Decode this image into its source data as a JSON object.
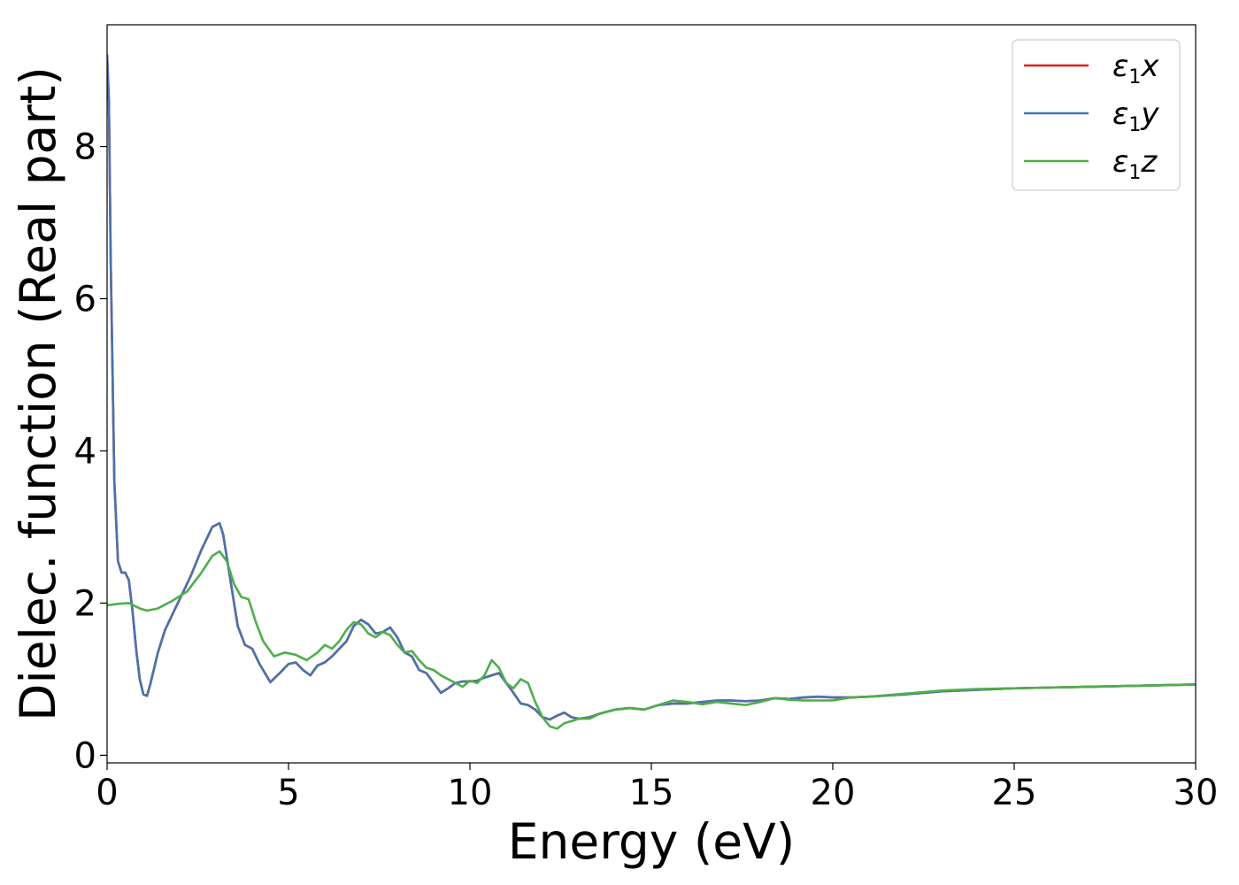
{
  "chart_data": {
    "type": "line",
    "xlabel": "Energy (eV)",
    "ylabel": "Dielec. function (Real part)",
    "xlim": [
      0,
      30
    ],
    "ylim": [
      -0.1,
      9.6
    ],
    "xticks": [
      "0",
      "5",
      "10",
      "15",
      "20",
      "25",
      "30"
    ],
    "yticks": [
      "0",
      "2",
      "4",
      "6",
      "8"
    ],
    "grid": false,
    "legend_position": "top-right",
    "series": [
      {
        "name": "ε1x",
        "legend_base": "ε",
        "legend_sub": "1",
        "legend_var": "x",
        "color": "#e41a1c",
        "x": [
          0,
          0.05,
          0.1,
          0.2,
          0.3,
          0.4,
          0.5,
          0.6,
          0.7,
          0.8,
          0.9,
          1.0,
          1.1,
          1.2,
          1.4,
          1.6,
          1.8,
          2.0,
          2.3,
          2.6,
          2.9,
          3.1,
          3.2,
          3.4,
          3.6,
          3.8,
          4.0,
          4.2,
          4.5,
          4.8,
          5.0,
          5.2,
          5.4,
          5.6,
          5.8,
          6.0,
          6.2,
          6.4,
          6.6,
          6.8,
          7.0,
          7.2,
          7.4,
          7.6,
          7.8,
          8.0,
          8.2,
          8.4,
          8.6,
          8.8,
          9.0,
          9.2,
          9.4,
          9.6,
          9.8,
          10.0,
          10.2,
          10.4,
          10.6,
          10.8,
          11.0,
          11.2,
          11.4,
          11.6,
          11.8,
          12.0,
          12.2,
          12.4,
          12.6,
          12.8,
          13.0,
          13.3,
          13.6,
          14.0,
          14.4,
          14.8,
          15.2,
          15.6,
          16.0,
          16.4,
          16.8,
          17.2,
          17.6,
          18.0,
          18.4,
          18.8,
          19.2,
          19.6,
          20.0,
          20.5,
          21.0,
          22.0,
          23.0,
          24.0,
          25.0,
          26.0,
          27.0,
          28.0,
          29.0,
          30.0
        ],
        "y": [
          9.2,
          8.6,
          6.5,
          3.6,
          2.55,
          2.4,
          2.4,
          2.3,
          1.9,
          1.4,
          1.0,
          0.8,
          0.78,
          0.95,
          1.35,
          1.65,
          1.85,
          2.05,
          2.35,
          2.7,
          3.0,
          3.05,
          2.9,
          2.3,
          1.7,
          1.45,
          1.4,
          1.2,
          0.96,
          1.1,
          1.2,
          1.22,
          1.12,
          1.05,
          1.18,
          1.22,
          1.3,
          1.4,
          1.5,
          1.7,
          1.78,
          1.72,
          1.6,
          1.62,
          1.68,
          1.55,
          1.35,
          1.3,
          1.12,
          1.08,
          0.95,
          0.82,
          0.88,
          0.95,
          0.97,
          0.97,
          0.98,
          1.02,
          1.05,
          1.08,
          0.95,
          0.82,
          0.68,
          0.66,
          0.6,
          0.5,
          0.47,
          0.52,
          0.56,
          0.5,
          0.48,
          0.5,
          0.55,
          0.6,
          0.62,
          0.6,
          0.66,
          0.68,
          0.68,
          0.7,
          0.72,
          0.72,
          0.71,
          0.72,
          0.75,
          0.74,
          0.76,
          0.77,
          0.76,
          0.76,
          0.77,
          0.8,
          0.84,
          0.86,
          0.88,
          0.89,
          0.9,
          0.91,
          0.92,
          0.93
        ]
      },
      {
        "name": "ε1y",
        "legend_base": "ε",
        "legend_sub": "1",
        "legend_var": "y",
        "color": "#4a72ae",
        "x": [
          0,
          0.05,
          0.1,
          0.2,
          0.3,
          0.4,
          0.5,
          0.6,
          0.7,
          0.8,
          0.9,
          1.0,
          1.1,
          1.2,
          1.4,
          1.6,
          1.8,
          2.0,
          2.3,
          2.6,
          2.9,
          3.1,
          3.2,
          3.4,
          3.6,
          3.8,
          4.0,
          4.2,
          4.5,
          4.8,
          5.0,
          5.2,
          5.4,
          5.6,
          5.8,
          6.0,
          6.2,
          6.4,
          6.6,
          6.8,
          7.0,
          7.2,
          7.4,
          7.6,
          7.8,
          8.0,
          8.2,
          8.4,
          8.6,
          8.8,
          9.0,
          9.2,
          9.4,
          9.6,
          9.8,
          10.0,
          10.2,
          10.4,
          10.6,
          10.8,
          11.0,
          11.2,
          11.4,
          11.6,
          11.8,
          12.0,
          12.2,
          12.4,
          12.6,
          12.8,
          13.0,
          13.3,
          13.6,
          14.0,
          14.4,
          14.8,
          15.2,
          15.6,
          16.0,
          16.4,
          16.8,
          17.2,
          17.6,
          18.0,
          18.4,
          18.8,
          19.2,
          19.6,
          20.0,
          20.5,
          21.0,
          22.0,
          23.0,
          24.0,
          25.0,
          26.0,
          27.0,
          28.0,
          29.0,
          30.0
        ],
        "y": [
          9.2,
          8.6,
          6.5,
          3.6,
          2.55,
          2.4,
          2.4,
          2.3,
          1.9,
          1.4,
          1.0,
          0.8,
          0.78,
          0.95,
          1.35,
          1.65,
          1.85,
          2.05,
          2.35,
          2.7,
          3.0,
          3.05,
          2.9,
          2.3,
          1.7,
          1.45,
          1.4,
          1.2,
          0.96,
          1.1,
          1.2,
          1.22,
          1.12,
          1.05,
          1.18,
          1.22,
          1.3,
          1.4,
          1.5,
          1.7,
          1.78,
          1.72,
          1.6,
          1.62,
          1.68,
          1.55,
          1.35,
          1.3,
          1.12,
          1.08,
          0.95,
          0.82,
          0.88,
          0.95,
          0.97,
          0.97,
          0.98,
          1.02,
          1.05,
          1.08,
          0.95,
          0.82,
          0.68,
          0.66,
          0.6,
          0.5,
          0.47,
          0.52,
          0.56,
          0.5,
          0.48,
          0.5,
          0.55,
          0.6,
          0.62,
          0.6,
          0.66,
          0.68,
          0.68,
          0.7,
          0.72,
          0.72,
          0.71,
          0.72,
          0.75,
          0.74,
          0.76,
          0.77,
          0.76,
          0.76,
          0.77,
          0.8,
          0.84,
          0.86,
          0.88,
          0.89,
          0.9,
          0.91,
          0.92,
          0.93
        ]
      },
      {
        "name": "ε1z",
        "legend_base": "ε",
        "legend_sub": "1",
        "legend_var": "z",
        "color": "#4daf4a",
        "x": [
          0,
          0.3,
          0.6,
          0.9,
          1.1,
          1.4,
          1.8,
          2.2,
          2.6,
          2.9,
          3.1,
          3.3,
          3.5,
          3.7,
          3.9,
          4.1,
          4.3,
          4.6,
          4.9,
          5.2,
          5.5,
          5.8,
          6.0,
          6.2,
          6.4,
          6.6,
          6.8,
          7.0,
          7.2,
          7.4,
          7.6,
          7.8,
          8.0,
          8.2,
          8.4,
          8.6,
          8.8,
          9.0,
          9.2,
          9.4,
          9.6,
          9.8,
          10.0,
          10.2,
          10.4,
          10.6,
          10.8,
          11.0,
          11.2,
          11.4,
          11.6,
          11.8,
          12.0,
          12.2,
          12.4,
          12.6,
          12.8,
          13.0,
          13.3,
          13.6,
          14.0,
          14.4,
          14.8,
          15.2,
          15.6,
          16.0,
          16.4,
          16.8,
          17.2,
          17.6,
          18.0,
          18.4,
          18.8,
          19.2,
          19.6,
          20.0,
          20.5,
          21.0,
          22.0,
          23.0,
          24.0,
          25.0,
          26.0,
          27.0,
          28.0,
          29.0,
          30.0
        ],
        "y": [
          1.97,
          1.99,
          2.0,
          1.93,
          1.9,
          1.93,
          2.03,
          2.15,
          2.4,
          2.62,
          2.68,
          2.55,
          2.25,
          2.08,
          2.05,
          1.75,
          1.5,
          1.3,
          1.35,
          1.32,
          1.25,
          1.35,
          1.45,
          1.4,
          1.5,
          1.65,
          1.75,
          1.72,
          1.6,
          1.55,
          1.62,
          1.58,
          1.45,
          1.35,
          1.37,
          1.25,
          1.15,
          1.12,
          1.05,
          1.0,
          0.95,
          0.9,
          0.98,
          0.95,
          1.05,
          1.25,
          1.15,
          0.95,
          0.88,
          1.0,
          0.95,
          0.7,
          0.5,
          0.38,
          0.35,
          0.42,
          0.45,
          0.48,
          0.48,
          0.55,
          0.6,
          0.62,
          0.6,
          0.66,
          0.72,
          0.7,
          0.67,
          0.7,
          0.68,
          0.66,
          0.7,
          0.75,
          0.73,
          0.72,
          0.72,
          0.72,
          0.76,
          0.77,
          0.81,
          0.85,
          0.87,
          0.88,
          0.89,
          0.9,
          0.91,
          0.92,
          0.93
        ]
      }
    ]
  }
}
